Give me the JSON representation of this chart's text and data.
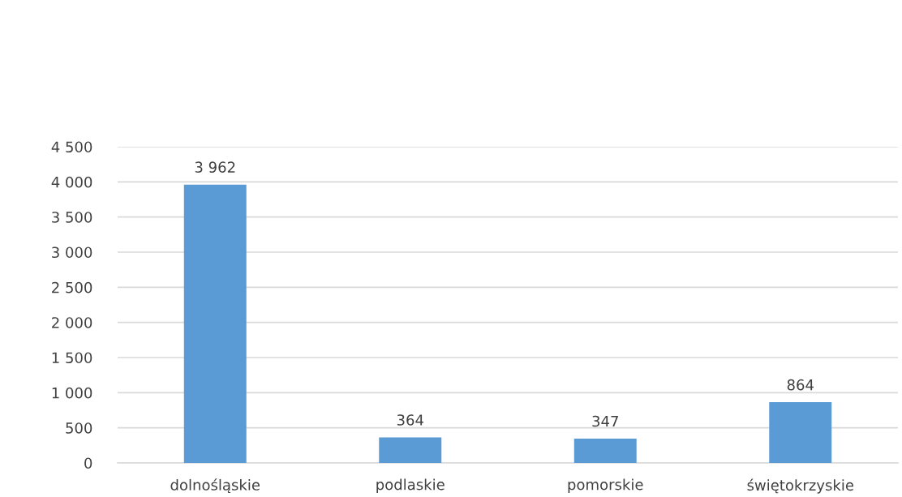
{
  "chart_data": {
    "type": "bar",
    "categories": [
      "dolnośląskie",
      "podlaskie",
      "pomorskie",
      "świętokrzyskie"
    ],
    "values": [
      3962,
      364,
      347,
      864
    ],
    "value_labels": [
      "3 962",
      "364",
      "347",
      "864"
    ],
    "color": "#5b9bd5",
    "ylim": [
      0,
      4500
    ],
    "yticks": [
      {
        "value": 0,
        "label": "0"
      },
      {
        "value": 500,
        "label": "500"
      },
      {
        "value": 1000,
        "label": "1 000"
      },
      {
        "value": 1500,
        "label": "1 500"
      },
      {
        "value": 2000,
        "label": "2 000"
      },
      {
        "value": 2500,
        "label": "2 500"
      },
      {
        "value": 3000,
        "label": "3 000"
      },
      {
        "value": 3500,
        "label": "3 500"
      },
      {
        "value": 4000,
        "label": "4 000"
      },
      {
        "value": 4500,
        "label": "4 500"
      }
    ],
    "grid": "y",
    "legend": false
  }
}
